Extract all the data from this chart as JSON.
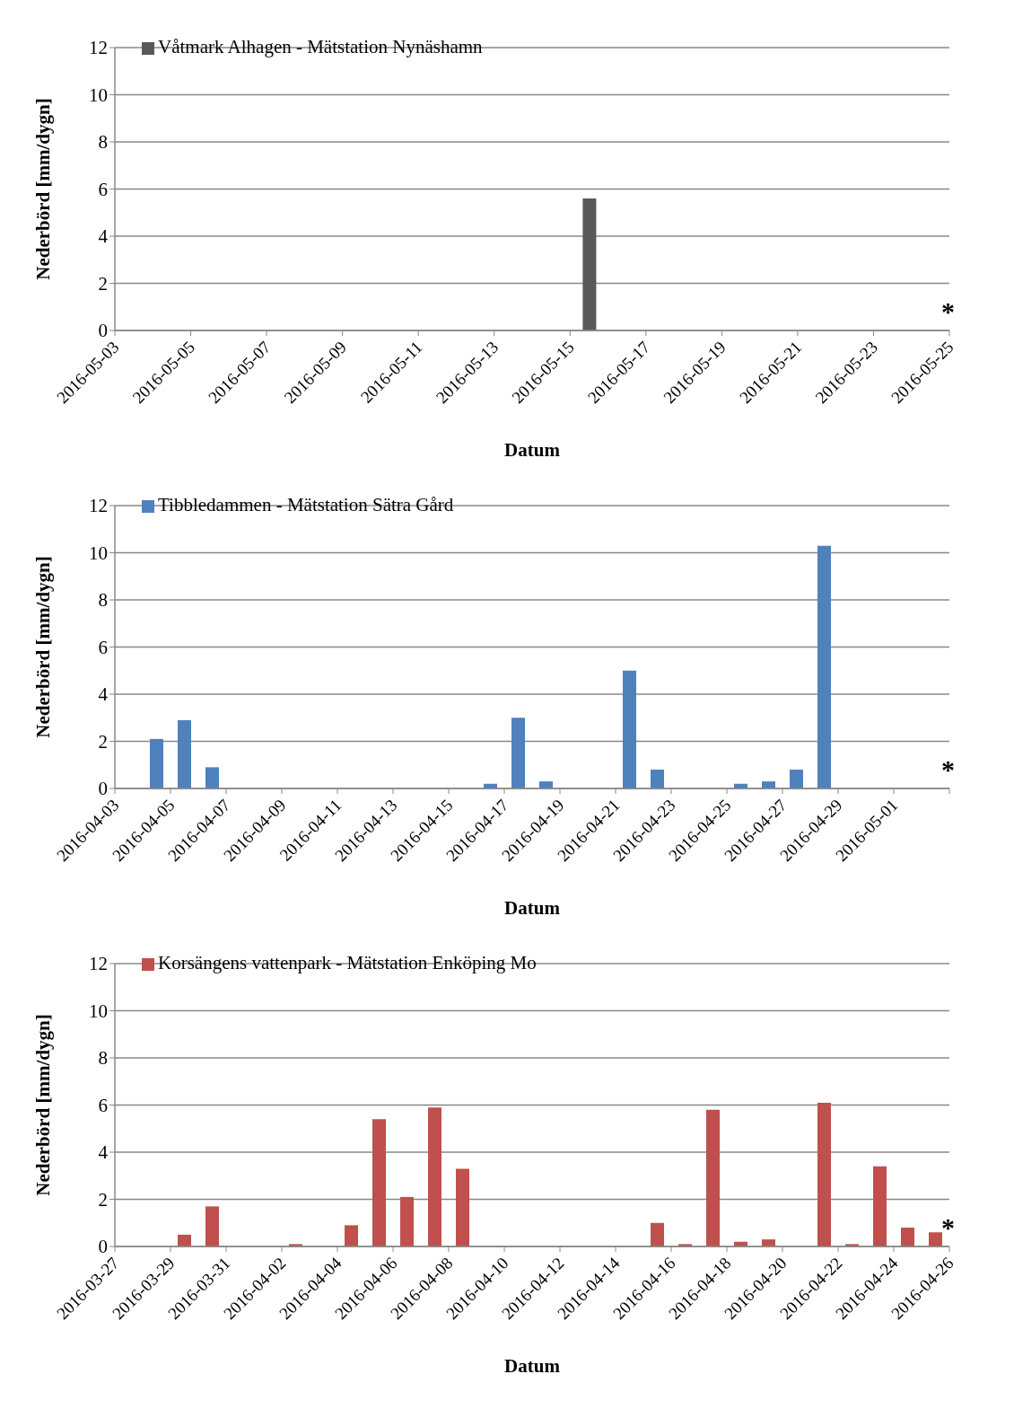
{
  "chart_data": [
    {
      "type": "bar",
      "xlabel": "Datum",
      "ylabel": "Nederbörd [mm/dygn]",
      "x": [
        "2016-05-15T12:00"
      ],
      "series": [
        {
          "name": "Våtmark Alhagen - Mätstation Nynäshamn",
          "color": "#595959",
          "values": [
            5.6
          ]
        }
      ],
      "xlim": [
        "2016-05-03",
        "2016-05-25"
      ],
      "xticks": [
        "2016-05-03",
        "2016-05-05",
        "2016-05-07",
        "2016-05-09",
        "2016-05-11",
        "2016-05-13",
        "2016-05-15",
        "2016-05-17",
        "2016-05-19",
        "2016-05-21",
        "2016-05-23",
        "2016-05-25"
      ],
      "ylim": [
        0,
        12
      ],
      "yticks": [
        0,
        2,
        4,
        6,
        8,
        10,
        12
      ],
      "grid": "y",
      "legend": "top left",
      "annotations": [
        "*"
      ]
    },
    {
      "type": "bar",
      "xlabel": "Datum",
      "ylabel": "Nederbörd [mm/dygn]",
      "x": [
        "2016-04-04T12:00",
        "2016-04-05T12:00",
        "2016-04-06T12:00",
        "2016-04-16T12:00",
        "2016-04-17T12:00",
        "2016-04-18T12:00",
        "2016-04-21T12:00",
        "2016-04-22T12:00",
        "2016-04-25T12:00",
        "2016-04-26T12:00",
        "2016-04-27T12:00",
        "2016-04-28T12:00"
      ],
      "series": [
        {
          "name": "Tibbledammen - Mätstation Sätra Gård",
          "color": "#4f81bd",
          "values": [
            2.1,
            2.9,
            0.9,
            0.2,
            3.0,
            0.3,
            5.0,
            0.8,
            0.2,
            0.3,
            0.8,
            10.3
          ]
        }
      ],
      "xlim": [
        "2016-04-03",
        "2016-05-03"
      ],
      "xticks": [
        "2016-04-03",
        "2016-04-05",
        "2016-04-07",
        "2016-04-09",
        "2016-04-11",
        "2016-04-13",
        "2016-04-15",
        "2016-04-17",
        "2016-04-19",
        "2016-04-21",
        "2016-04-23",
        "2016-04-25",
        "2016-04-27",
        "2016-04-29",
        "2016-05-01",
        {
          "value": "2016-05-03",
          "label": null
        }
      ],
      "ylim": [
        0,
        12
      ],
      "yticks": [
        0,
        2,
        4,
        6,
        8,
        10,
        12
      ],
      "grid": "y",
      "legend": "top left",
      "annotations": [
        "*"
      ]
    },
    {
      "type": "bar",
      "xlabel": "Datum",
      "ylabel": "Nederbörd [mm/dygn]",
      "x": [
        "2016-03-29T12:00",
        "2016-03-30T12:00",
        "2016-04-02T12:00",
        "2016-04-04T12:00",
        "2016-04-05T12:00",
        "2016-04-06T12:00",
        "2016-04-07T12:00",
        "2016-04-08T12:00",
        "2016-04-15T12:00",
        "2016-04-16T12:00",
        "2016-04-17T12:00",
        "2016-04-18T12:00",
        "2016-04-19T12:00",
        "2016-04-21T12:00",
        "2016-04-22T12:00",
        "2016-04-23T12:00",
        "2016-04-24T12:00",
        "2016-04-25T12:00"
      ],
      "series": [
        {
          "name": "Korsängens vattenpark - Mätstation Enköping Mo",
          "color": "#c0504d",
          "values": [
            0.5,
            1.7,
            0.1,
            0.9,
            5.4,
            2.1,
            5.9,
            3.3,
            1.0,
            0.1,
            5.8,
            0.2,
            0.3,
            6.1,
            0.1,
            3.4,
            0.8,
            0.6
          ]
        }
      ],
      "xlim": [
        "2016-03-27",
        "2016-04-26"
      ],
      "xticks": [
        "2016-03-27",
        "2016-03-29",
        "2016-03-31",
        "2016-04-02",
        "2016-04-04",
        "2016-04-06",
        "2016-04-08",
        "2016-04-10",
        "2016-04-12",
        "2016-04-14",
        "2016-04-16",
        "2016-04-18",
        "2016-04-20",
        "2016-04-22",
        "2016-04-24",
        "2016-04-26"
      ],
      "ylim": [
        0,
        12
      ],
      "yticks": [
        0,
        2,
        4,
        6,
        8,
        10,
        12
      ],
      "grid": "y",
      "legend": "top left",
      "annotations": [
        "*"
      ]
    }
  ]
}
